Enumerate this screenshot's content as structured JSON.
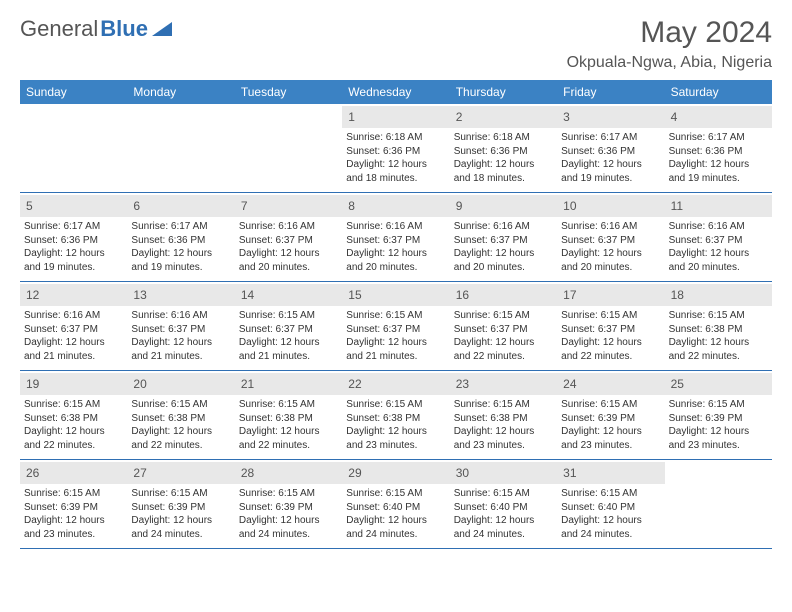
{
  "logo": {
    "text1": "General",
    "text2": "Blue"
  },
  "title": "May 2024",
  "location": "Okpuala-Ngwa, Abia, Nigeria",
  "header_bg": "#3b82c4",
  "accent_color": "#2f6fb3",
  "day_bg": "#e8e8e8",
  "text_color": "#333333",
  "muted_color": "#555555",
  "day_names": [
    "Sunday",
    "Monday",
    "Tuesday",
    "Wednesday",
    "Thursday",
    "Friday",
    "Saturday"
  ],
  "weeks": [
    [
      null,
      null,
      null,
      {
        "n": "1",
        "sr": "Sunrise: 6:18 AM",
        "ss": "Sunset: 6:36 PM",
        "d1": "Daylight: 12 hours",
        "d2": "and 18 minutes."
      },
      {
        "n": "2",
        "sr": "Sunrise: 6:18 AM",
        "ss": "Sunset: 6:36 PM",
        "d1": "Daylight: 12 hours",
        "d2": "and 18 minutes."
      },
      {
        "n": "3",
        "sr": "Sunrise: 6:17 AM",
        "ss": "Sunset: 6:36 PM",
        "d1": "Daylight: 12 hours",
        "d2": "and 19 minutes."
      },
      {
        "n": "4",
        "sr": "Sunrise: 6:17 AM",
        "ss": "Sunset: 6:36 PM",
        "d1": "Daylight: 12 hours",
        "d2": "and 19 minutes."
      }
    ],
    [
      {
        "n": "5",
        "sr": "Sunrise: 6:17 AM",
        "ss": "Sunset: 6:36 PM",
        "d1": "Daylight: 12 hours",
        "d2": "and 19 minutes."
      },
      {
        "n": "6",
        "sr": "Sunrise: 6:17 AM",
        "ss": "Sunset: 6:36 PM",
        "d1": "Daylight: 12 hours",
        "d2": "and 19 minutes."
      },
      {
        "n": "7",
        "sr": "Sunrise: 6:16 AM",
        "ss": "Sunset: 6:37 PM",
        "d1": "Daylight: 12 hours",
        "d2": "and 20 minutes."
      },
      {
        "n": "8",
        "sr": "Sunrise: 6:16 AM",
        "ss": "Sunset: 6:37 PM",
        "d1": "Daylight: 12 hours",
        "d2": "and 20 minutes."
      },
      {
        "n": "9",
        "sr": "Sunrise: 6:16 AM",
        "ss": "Sunset: 6:37 PM",
        "d1": "Daylight: 12 hours",
        "d2": "and 20 minutes."
      },
      {
        "n": "10",
        "sr": "Sunrise: 6:16 AM",
        "ss": "Sunset: 6:37 PM",
        "d1": "Daylight: 12 hours",
        "d2": "and 20 minutes."
      },
      {
        "n": "11",
        "sr": "Sunrise: 6:16 AM",
        "ss": "Sunset: 6:37 PM",
        "d1": "Daylight: 12 hours",
        "d2": "and 20 minutes."
      }
    ],
    [
      {
        "n": "12",
        "sr": "Sunrise: 6:16 AM",
        "ss": "Sunset: 6:37 PM",
        "d1": "Daylight: 12 hours",
        "d2": "and 21 minutes."
      },
      {
        "n": "13",
        "sr": "Sunrise: 6:16 AM",
        "ss": "Sunset: 6:37 PM",
        "d1": "Daylight: 12 hours",
        "d2": "and 21 minutes."
      },
      {
        "n": "14",
        "sr": "Sunrise: 6:15 AM",
        "ss": "Sunset: 6:37 PM",
        "d1": "Daylight: 12 hours",
        "d2": "and 21 minutes."
      },
      {
        "n": "15",
        "sr": "Sunrise: 6:15 AM",
        "ss": "Sunset: 6:37 PM",
        "d1": "Daylight: 12 hours",
        "d2": "and 21 minutes."
      },
      {
        "n": "16",
        "sr": "Sunrise: 6:15 AM",
        "ss": "Sunset: 6:37 PM",
        "d1": "Daylight: 12 hours",
        "d2": "and 22 minutes."
      },
      {
        "n": "17",
        "sr": "Sunrise: 6:15 AM",
        "ss": "Sunset: 6:37 PM",
        "d1": "Daylight: 12 hours",
        "d2": "and 22 minutes."
      },
      {
        "n": "18",
        "sr": "Sunrise: 6:15 AM",
        "ss": "Sunset: 6:38 PM",
        "d1": "Daylight: 12 hours",
        "d2": "and 22 minutes."
      }
    ],
    [
      {
        "n": "19",
        "sr": "Sunrise: 6:15 AM",
        "ss": "Sunset: 6:38 PM",
        "d1": "Daylight: 12 hours",
        "d2": "and 22 minutes."
      },
      {
        "n": "20",
        "sr": "Sunrise: 6:15 AM",
        "ss": "Sunset: 6:38 PM",
        "d1": "Daylight: 12 hours",
        "d2": "and 22 minutes."
      },
      {
        "n": "21",
        "sr": "Sunrise: 6:15 AM",
        "ss": "Sunset: 6:38 PM",
        "d1": "Daylight: 12 hours",
        "d2": "and 22 minutes."
      },
      {
        "n": "22",
        "sr": "Sunrise: 6:15 AM",
        "ss": "Sunset: 6:38 PM",
        "d1": "Daylight: 12 hours",
        "d2": "and 23 minutes."
      },
      {
        "n": "23",
        "sr": "Sunrise: 6:15 AM",
        "ss": "Sunset: 6:38 PM",
        "d1": "Daylight: 12 hours",
        "d2": "and 23 minutes."
      },
      {
        "n": "24",
        "sr": "Sunrise: 6:15 AM",
        "ss": "Sunset: 6:39 PM",
        "d1": "Daylight: 12 hours",
        "d2": "and 23 minutes."
      },
      {
        "n": "25",
        "sr": "Sunrise: 6:15 AM",
        "ss": "Sunset: 6:39 PM",
        "d1": "Daylight: 12 hours",
        "d2": "and 23 minutes."
      }
    ],
    [
      {
        "n": "26",
        "sr": "Sunrise: 6:15 AM",
        "ss": "Sunset: 6:39 PM",
        "d1": "Daylight: 12 hours",
        "d2": "and 23 minutes."
      },
      {
        "n": "27",
        "sr": "Sunrise: 6:15 AM",
        "ss": "Sunset: 6:39 PM",
        "d1": "Daylight: 12 hours",
        "d2": "and 24 minutes."
      },
      {
        "n": "28",
        "sr": "Sunrise: 6:15 AM",
        "ss": "Sunset: 6:39 PM",
        "d1": "Daylight: 12 hours",
        "d2": "and 24 minutes."
      },
      {
        "n": "29",
        "sr": "Sunrise: 6:15 AM",
        "ss": "Sunset: 6:40 PM",
        "d1": "Daylight: 12 hours",
        "d2": "and 24 minutes."
      },
      {
        "n": "30",
        "sr": "Sunrise: 6:15 AM",
        "ss": "Sunset: 6:40 PM",
        "d1": "Daylight: 12 hours",
        "d2": "and 24 minutes."
      },
      {
        "n": "31",
        "sr": "Sunrise: 6:15 AM",
        "ss": "Sunset: 6:40 PM",
        "d1": "Daylight: 12 hours",
        "d2": "and 24 minutes."
      },
      null
    ]
  ]
}
